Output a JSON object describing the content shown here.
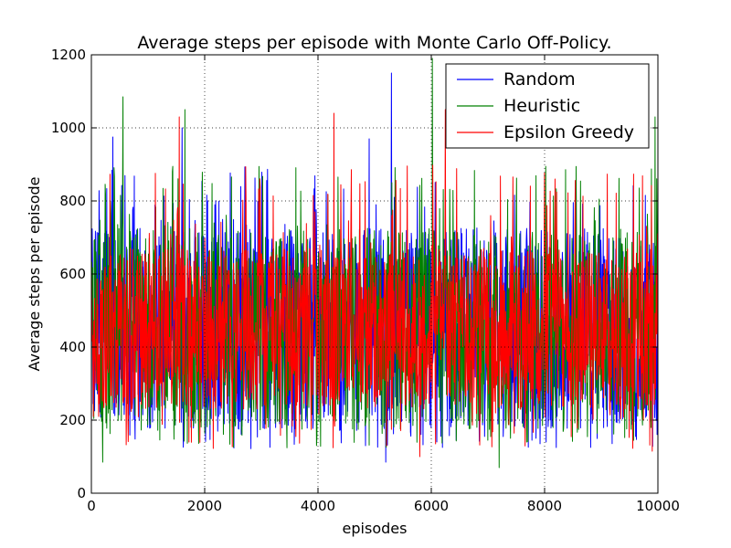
{
  "chart_data": {
    "type": "line",
    "title": "Average steps per episode with Monte Carlo Off-Policy.",
    "xlabel": "episodes",
    "ylabel": "Average steps per episode",
    "xlim": [
      0,
      10000
    ],
    "ylim": [
      0,
      1200
    ],
    "x_ticks": [
      "0",
      "2000",
      "4000",
      "6000",
      "8000",
      "10000"
    ],
    "y_ticks": [
      "0",
      "200",
      "400",
      "600",
      "800",
      "1000",
      "1200"
    ],
    "grid": true,
    "legend_position": "top-right",
    "series": [
      {
        "name": "Random",
        "color": "#0000ff",
        "x_range": [
          0,
          10000
        ],
        "typical_range": [
          200,
          700
        ],
        "extremes": [
          {
            "x": 5300,
            "y": 1150
          },
          {
            "x": 380,
            "y": 975
          },
          {
            "x": 1600,
            "y": 1000
          },
          {
            "x": 4900,
            "y": 970
          },
          {
            "x": 5200,
            "y": 85
          }
        ]
      },
      {
        "name": "Heuristic",
        "color": "#008000",
        "x_range": [
          0,
          10000
        ],
        "typical_range": [
          200,
          700
        ],
        "extremes": [
          {
            "x": 6020,
            "y": 1190
          },
          {
            "x": 560,
            "y": 1085
          },
          {
            "x": 1650,
            "y": 1050
          },
          {
            "x": 9950,
            "y": 1030
          },
          {
            "x": 7200,
            "y": 70
          },
          {
            "x": 200,
            "y": 85
          }
        ]
      },
      {
        "name": "Epsilon Greedy",
        "color": "#ff0000",
        "x_range": [
          0,
          10000
        ],
        "typical_range": [
          250,
          650
        ],
        "extremes": [
          {
            "x": 1550,
            "y": 1030
          },
          {
            "x": 4280,
            "y": 1040
          },
          {
            "x": 6250,
            "y": 1050
          },
          {
            "x": 5800,
            "y": 100
          },
          {
            "x": 9900,
            "y": 115
          }
        ]
      }
    ]
  }
}
